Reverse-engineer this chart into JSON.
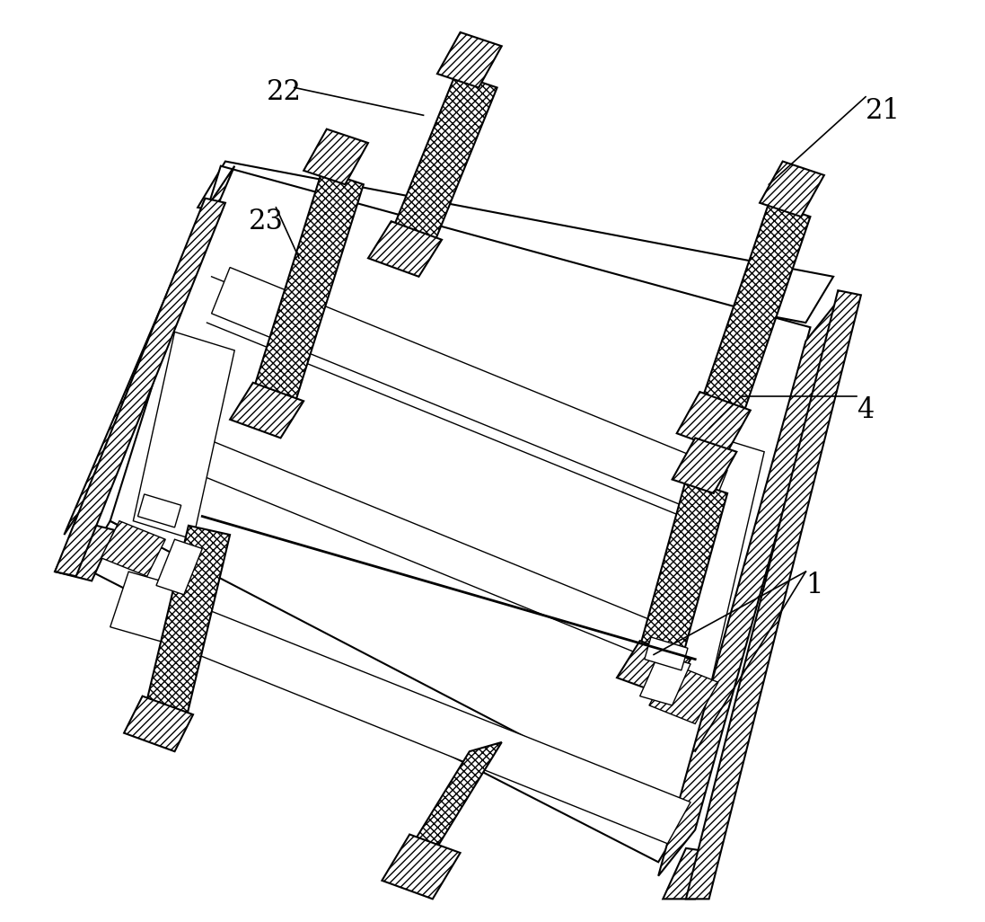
{
  "bg_color": "#ffffff",
  "line_color": "#000000",
  "fig_width": 10.97,
  "fig_height": 10.26,
  "dpi": 100,
  "label_fontsize": 22
}
